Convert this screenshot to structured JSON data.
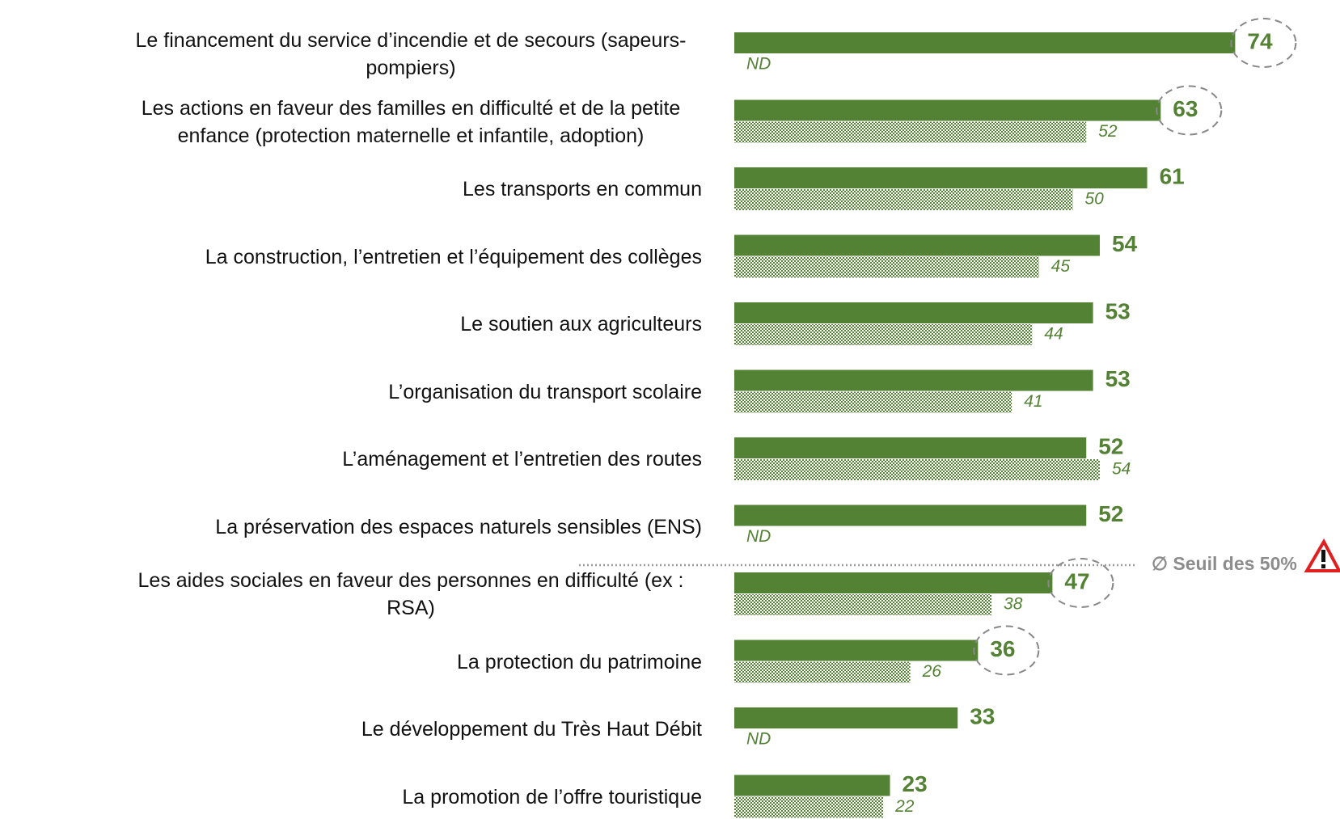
{
  "chart_data": {
    "type": "hbar",
    "categories": [
      "Le financement du service d’incendie et de secours (sapeurs-pompiers)",
      "Les actions en faveur des familles en difficulté et de la petite enfance (protection maternelle et infantile, adoption)",
      "Les transports en commun",
      "La construction, l’entretien et l’équipement des collèges",
      "Le soutien aux agriculteurs",
      "L’organisation du transport scolaire",
      "L’aménagement et l’entretien des routes",
      "La préservation des espaces naturels sensibles (ENS)",
      "Les aides sociales en faveur des personnes en difficulté (ex : RSA)",
      "La protection du patrimoine",
      "Le développement du Très Haut Débit",
      "La promotion de l’offre touristique"
    ],
    "series": [
      {
        "color": "#548235",
        "values": [
          74,
          63,
          61,
          54,
          53,
          53,
          52,
          52,
          47,
          36,
          33,
          23
        ]
      },
      {
        "color": "#548235",
        "pattern": "checker",
        "values": [
          null,
          52,
          50,
          45,
          44,
          41,
          54,
          null,
          38,
          26,
          null,
          22
        ],
        "value_labels": [
          "ND",
          "52",
          "50",
          "45",
          "44",
          "41",
          "54",
          "ND",
          "38",
          "26",
          "ND",
          "22"
        ]
      }
    ],
    "xlim": [
      0,
      100
    ],
    "highlighted": [
      0,
      1,
      8,
      9
    ],
    "annotation": "∅ Seuil des 50%"
  }
}
